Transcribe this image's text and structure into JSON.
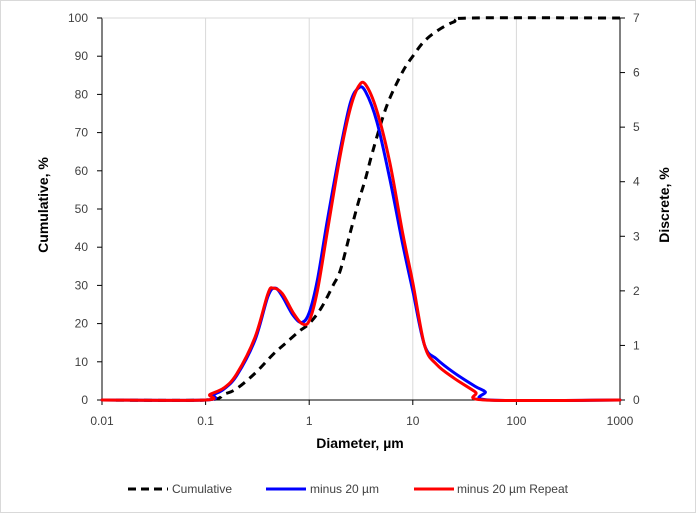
{
  "chart_data": {
    "type": "line",
    "xlabel": "Diameter, µm",
    "ylabel_left": "Cumulative, %",
    "ylabel_right": "Discrete, %",
    "x_scale": "log",
    "xlim": [
      0.01,
      1000
    ],
    "ylim_left": [
      0,
      100
    ],
    "ylim_right": [
      0,
      7
    ],
    "x_ticks": [
      "0.01",
      "0.1",
      "1",
      "10",
      "100",
      "1000"
    ],
    "y_ticks_left": [
      "0",
      "10",
      "20",
      "30",
      "40",
      "50",
      "60",
      "70",
      "80",
      "90",
      "100"
    ],
    "y_ticks_right": [
      "0",
      "1",
      "2",
      "3",
      "4",
      "5",
      "6",
      "7"
    ],
    "grid": "vertical",
    "legend_position": "bottom",
    "series": [
      {
        "name": "Cumulative",
        "axis": "left",
        "color": "#000000",
        "style": "dashed",
        "points": [
          [
            0.01,
            0
          ],
          [
            0.1,
            0
          ],
          [
            0.15,
            1.5
          ],
          [
            0.2,
            3
          ],
          [
            0.3,
            7
          ],
          [
            0.45,
            12
          ],
          [
            0.6,
            15
          ],
          [
            0.8,
            18
          ],
          [
            1.0,
            20
          ],
          [
            1.3,
            24
          ],
          [
            1.7,
            30
          ],
          [
            2.0,
            34
          ],
          [
            2.5,
            44
          ],
          [
            3.0,
            52
          ],
          [
            3.5,
            58
          ],
          [
            4.0,
            64
          ],
          [
            5.0,
            73
          ],
          [
            6.0,
            79
          ],
          [
            8.0,
            86
          ],
          [
            10.0,
            90
          ],
          [
            13.0,
            94
          ],
          [
            18.0,
            97
          ],
          [
            25.0,
            99
          ],
          [
            35.0,
            100
          ],
          [
            1000,
            100
          ]
        ]
      },
      {
        "name": "minus 20 µm",
        "axis": "right",
        "color": "#0000ff",
        "style": "solid",
        "points": [
          [
            0.01,
            0
          ],
          [
            0.1,
            0
          ],
          [
            0.12,
            0.1
          ],
          [
            0.15,
            0.2
          ],
          [
            0.2,
            0.45
          ],
          [
            0.3,
            1.1
          ],
          [
            0.4,
            1.9
          ],
          [
            0.47,
            2.05
          ],
          [
            0.55,
            1.9
          ],
          [
            0.7,
            1.55
          ],
          [
            0.85,
            1.42
          ],
          [
            1.0,
            1.6
          ],
          [
            1.2,
            2.2
          ],
          [
            1.5,
            3.3
          ],
          [
            2.0,
            4.6
          ],
          [
            2.5,
            5.45
          ],
          [
            3.0,
            5.72
          ],
          [
            3.5,
            5.65
          ],
          [
            4.5,
            5.1
          ],
          [
            6.0,
            4.05
          ],
          [
            8.0,
            2.85
          ],
          [
            10.0,
            2.0
          ],
          [
            13.0,
            1.0
          ],
          [
            17.0,
            0.75
          ],
          [
            25.0,
            0.5
          ],
          [
            40.0,
            0.25
          ],
          [
            50.0,
            0.15
          ],
          [
            55.0,
            0
          ],
          [
            1000,
            0
          ]
        ]
      },
      {
        "name": "minus 20 µm Repeat",
        "axis": "right",
        "color": "#ff0000",
        "style": "solid",
        "points": [
          [
            0.01,
            0
          ],
          [
            0.1,
            0
          ],
          [
            0.11,
            0.1
          ],
          [
            0.15,
            0.22
          ],
          [
            0.2,
            0.48
          ],
          [
            0.3,
            1.15
          ],
          [
            0.4,
            1.95
          ],
          [
            0.45,
            2.05
          ],
          [
            0.55,
            1.95
          ],
          [
            0.7,
            1.6
          ],
          [
            0.85,
            1.4
          ],
          [
            1.0,
            1.45
          ],
          [
            1.2,
            2.0
          ],
          [
            1.5,
            3.1
          ],
          [
            2.0,
            4.5
          ],
          [
            2.5,
            5.35
          ],
          [
            3.0,
            5.75
          ],
          [
            3.5,
            5.78
          ],
          [
            4.5,
            5.3
          ],
          [
            6.0,
            4.35
          ],
          [
            8.0,
            3.05
          ],
          [
            10.0,
            2.15
          ],
          [
            13.0,
            1.0
          ],
          [
            17.0,
            0.65
          ],
          [
            25.0,
            0.4
          ],
          [
            40.0,
            0.15
          ],
          [
            50.0,
            0
          ],
          [
            1000,
            0
          ]
        ]
      }
    ]
  }
}
